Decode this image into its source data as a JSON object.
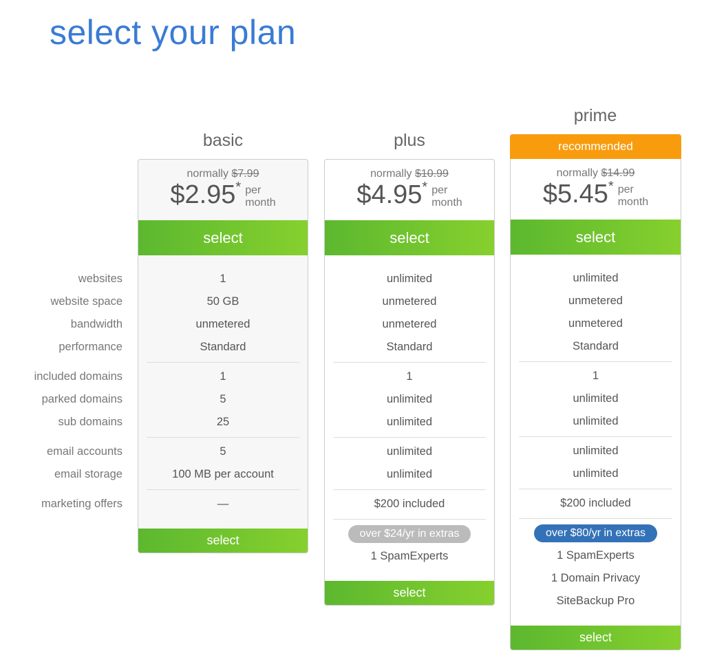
{
  "title": "select your plan",
  "labels": [
    [
      "websites",
      "website space",
      "bandwidth",
      "performance"
    ],
    [
      "included domains",
      "parked domains",
      "sub domains"
    ],
    [
      "email accounts",
      "email storage"
    ],
    [
      "marketing offers"
    ]
  ],
  "plans": [
    {
      "name": "basic",
      "normally_label": "normally",
      "old_price": "$7.99",
      "price": "$2.95",
      "star": "*",
      "per": "per",
      "month": "month",
      "select": "select",
      "groups": [
        [
          "1",
          "50 GB",
          "unmetered",
          "Standard"
        ],
        [
          "1",
          "5",
          "25"
        ],
        [
          "5",
          "100 MB per account"
        ],
        [
          "—"
        ]
      ]
    },
    {
      "name": "plus",
      "normally_label": "normally",
      "old_price": "$10.99",
      "price": "$4.95",
      "star": "*",
      "per": "per",
      "month": "month",
      "select": "select",
      "groups": [
        [
          "unlimited",
          "unmetered",
          "unmetered",
          "Standard"
        ],
        [
          "1",
          "unlimited",
          "unlimited"
        ],
        [
          "unlimited",
          "unlimited"
        ],
        [
          "$200 included"
        ]
      ],
      "extras_badge": "over $24/yr in extras",
      "badge_color": "#bbbbbb",
      "extras": [
        "1 SpamExperts"
      ]
    },
    {
      "name": "prime",
      "recommended": "recommended",
      "normally_label": "normally",
      "old_price": "$14.99",
      "price": "$5.45",
      "star": "*",
      "per": "per",
      "month": "month",
      "select": "select",
      "groups": [
        [
          "unlimited",
          "unmetered",
          "unmetered",
          "Standard"
        ],
        [
          "1",
          "unlimited",
          "unlimited"
        ],
        [
          "unlimited",
          "unlimited"
        ],
        [
          "$200 included"
        ]
      ],
      "extras_badge": "over $80/yr in extras",
      "badge_color": "#3372b8",
      "extras": [
        "1 SpamExperts",
        "1 Domain Privacy",
        "SiteBackup Pro"
      ]
    }
  ],
  "colors": {
    "title": "#3a7bd5",
    "select_green": "#6cc22f",
    "recommended": "#f89c0e"
  }
}
